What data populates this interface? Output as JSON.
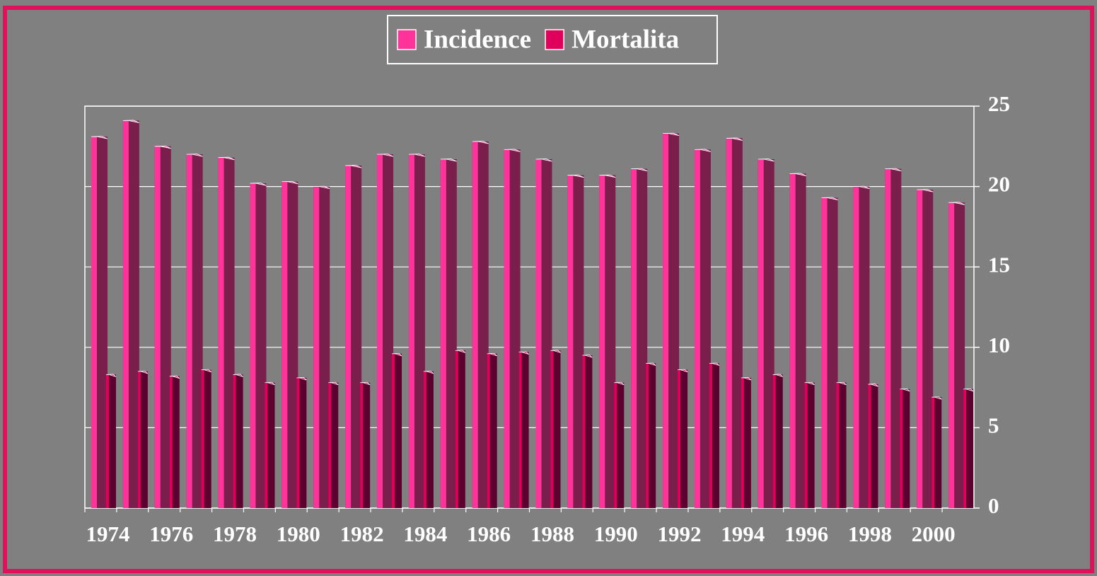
{
  "chart_data": {
    "type": "bar",
    "categories": [
      "1974",
      null,
      "1976",
      null,
      "1978",
      null,
      "1980",
      null,
      "1982",
      null,
      "1984",
      null,
      "1986",
      null,
      "1988",
      null,
      "1990",
      null,
      "1992",
      null,
      "1994",
      null,
      "1996",
      null,
      "1998",
      null,
      "2000",
      null
    ],
    "series": [
      {
        "name": "Incidence",
        "color": "#ff3399",
        "values": [
          23.1,
          24.1,
          22.5,
          22.0,
          21.8,
          20.2,
          20.3,
          20.0,
          21.3,
          22.0,
          22.0,
          21.7,
          22.8,
          22.3,
          21.7,
          20.7,
          20.7,
          21.1,
          23.3,
          22.3,
          23.0,
          21.7,
          20.8,
          19.3,
          20.0,
          21.1,
          19.8,
          19.0
        ]
      },
      {
        "name": "Mortalita",
        "color": "#e0005c",
        "values": [
          8.3,
          8.5,
          8.2,
          8.6,
          8.3,
          7.8,
          8.1,
          7.8,
          7.8,
          9.6,
          8.5,
          9.8,
          9.6,
          9.7,
          9.8,
          9.5,
          7.8,
          9.0,
          8.6,
          9.0,
          8.1,
          8.3,
          7.8,
          7.8,
          7.7,
          7.4,
          6.9,
          7.4
        ]
      }
    ],
    "ylim": [
      0,
      25
    ],
    "yticks": [
      0,
      5,
      10,
      15,
      20,
      25
    ],
    "y_axis_side": "right",
    "grid": true,
    "legend": "top"
  }
}
